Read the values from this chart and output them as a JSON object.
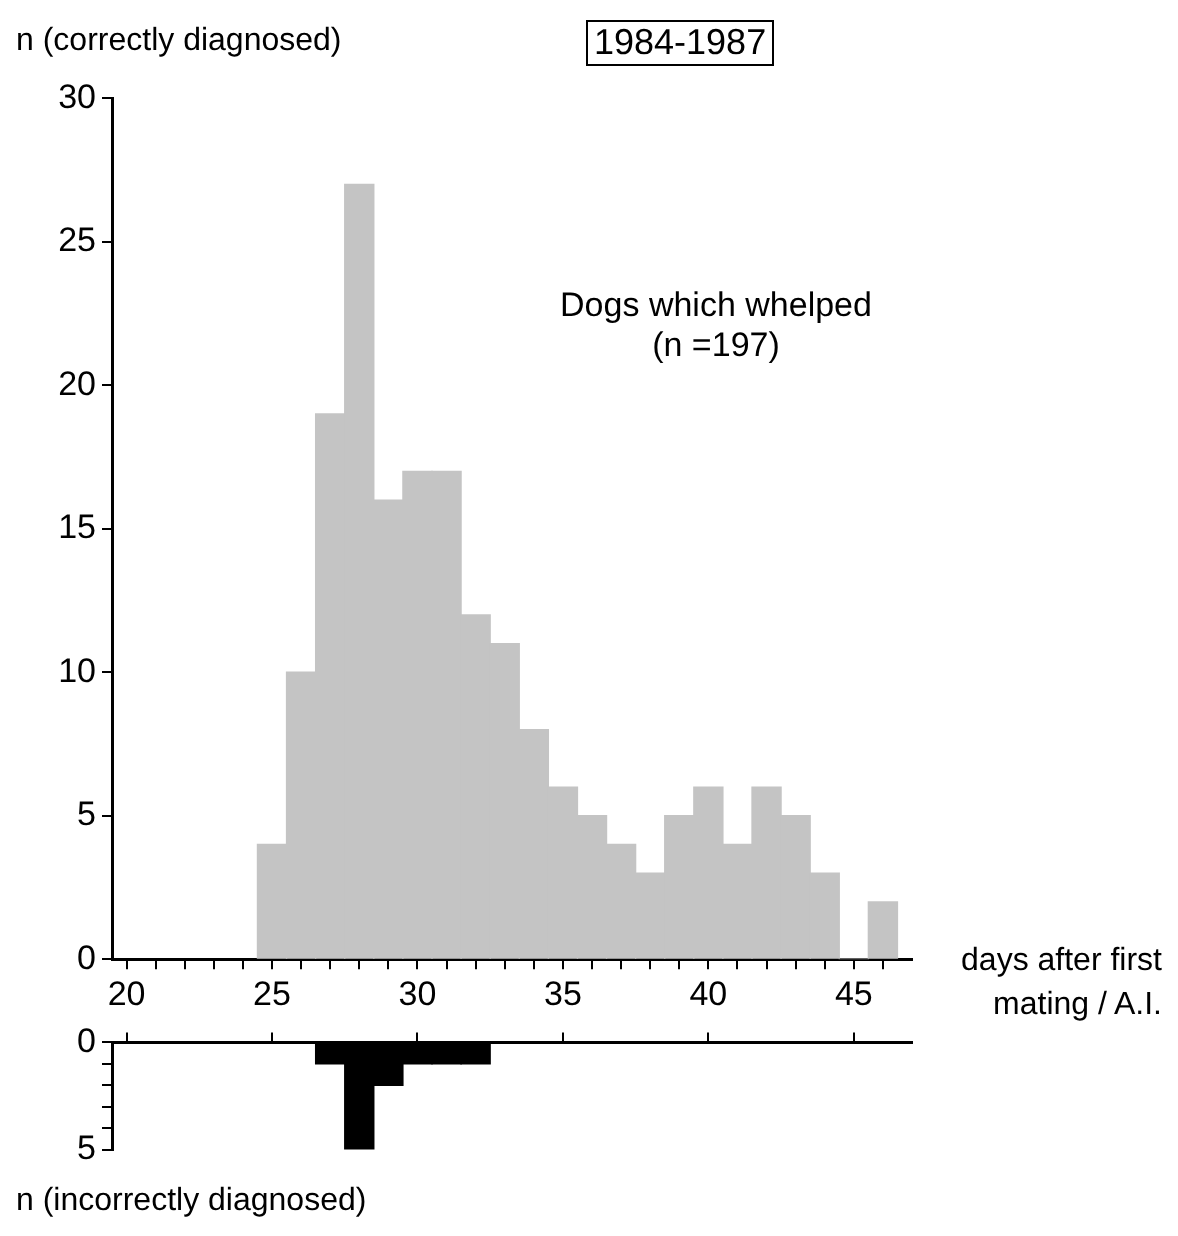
{
  "chart_data": [
    {
      "type": "histogram",
      "title": "1984-1987",
      "ylabel": "n (correctly diagnosed)",
      "xlabel": "days after first mating / A.I.",
      "annotations": [
        "Dogs which whelped\n(n =197)"
      ],
      "bins": [
        24.5,
        25.5,
        26.5,
        27.5,
        28.5,
        29.5,
        30.5,
        31.5,
        32.5,
        33.5,
        34.5,
        35.5,
        36.5,
        37.5,
        38.5,
        39.5,
        40.5,
        41.5,
        42.5,
        43.5,
        44.5,
        45.5,
        46.5
      ],
      "values": [
        4,
        10,
        19,
        27,
        16,
        17,
        17,
        12,
        11,
        8,
        6,
        5,
        4,
        3,
        5,
        6,
        4,
        6,
        5,
        3,
        0,
        2
      ],
      "color": "#c4c4c4",
      "xlim": [
        19.5,
        47
      ],
      "xticks": [
        20,
        {
          "value": 21,
          "label": null
        },
        {
          "value": 22,
          "label": null
        },
        {
          "value": 23,
          "label": null
        },
        {
          "value": 24,
          "label": null
        },
        25,
        {
          "value": 26,
          "label": null
        },
        {
          "value": 27,
          "label": null
        },
        {
          "value": 28,
          "label": null
        },
        {
          "value": 29,
          "label": null
        },
        30,
        {
          "value": 31,
          "label": null
        },
        {
          "value": 32,
          "label": null
        },
        {
          "value": 33,
          "label": null
        },
        {
          "value": 34,
          "label": null
        },
        35,
        {
          "value": 36,
          "label": null
        },
        {
          "value": 37,
          "label": null
        },
        {
          "value": 38,
          "label": null
        },
        {
          "value": 39,
          "label": null
        },
        40,
        {
          "value": 41,
          "label": null
        },
        {
          "value": 42,
          "label": null
        },
        {
          "value": 43,
          "label": null
        },
        {
          "value": 44,
          "label": null
        },
        45,
        {
          "value": 46,
          "label": null
        }
      ],
      "ylim": [
        0,
        30
      ],
      "yticks": [
        0,
        5,
        10,
        15,
        20,
        25,
        30
      ]
    },
    {
      "type": "histogram",
      "ylabel": "n (incorrectly diagnosed)",
      "bins": [
        26.5,
        27.5,
        28.5,
        29.5,
        30.5,
        31.5,
        32.5
      ],
      "values": [
        1,
        5,
        2,
        1,
        1,
        1
      ],
      "color": "#000000",
      "xlim": [
        19.5,
        47
      ],
      "xticks": [
        {
          "value": 20,
          "label": null
        },
        {
          "value": 25,
          "label": null
        },
        {
          "value": 30,
          "label": null
        },
        {
          "value": 35,
          "label": null
        },
        {
          "value": 40,
          "label": null
        },
        {
          "value": 45,
          "label": null
        }
      ],
      "ylim": [
        5,
        0
      ],
      "yticks": [
        0,
        {
          "value": 1,
          "label": null
        },
        {
          "value": 2,
          "label": null
        },
        {
          "value": 3,
          "label": null
        },
        {
          "value": 4,
          "label": null
        },
        5
      ],
      "tick_labels": "y"
    }
  ]
}
